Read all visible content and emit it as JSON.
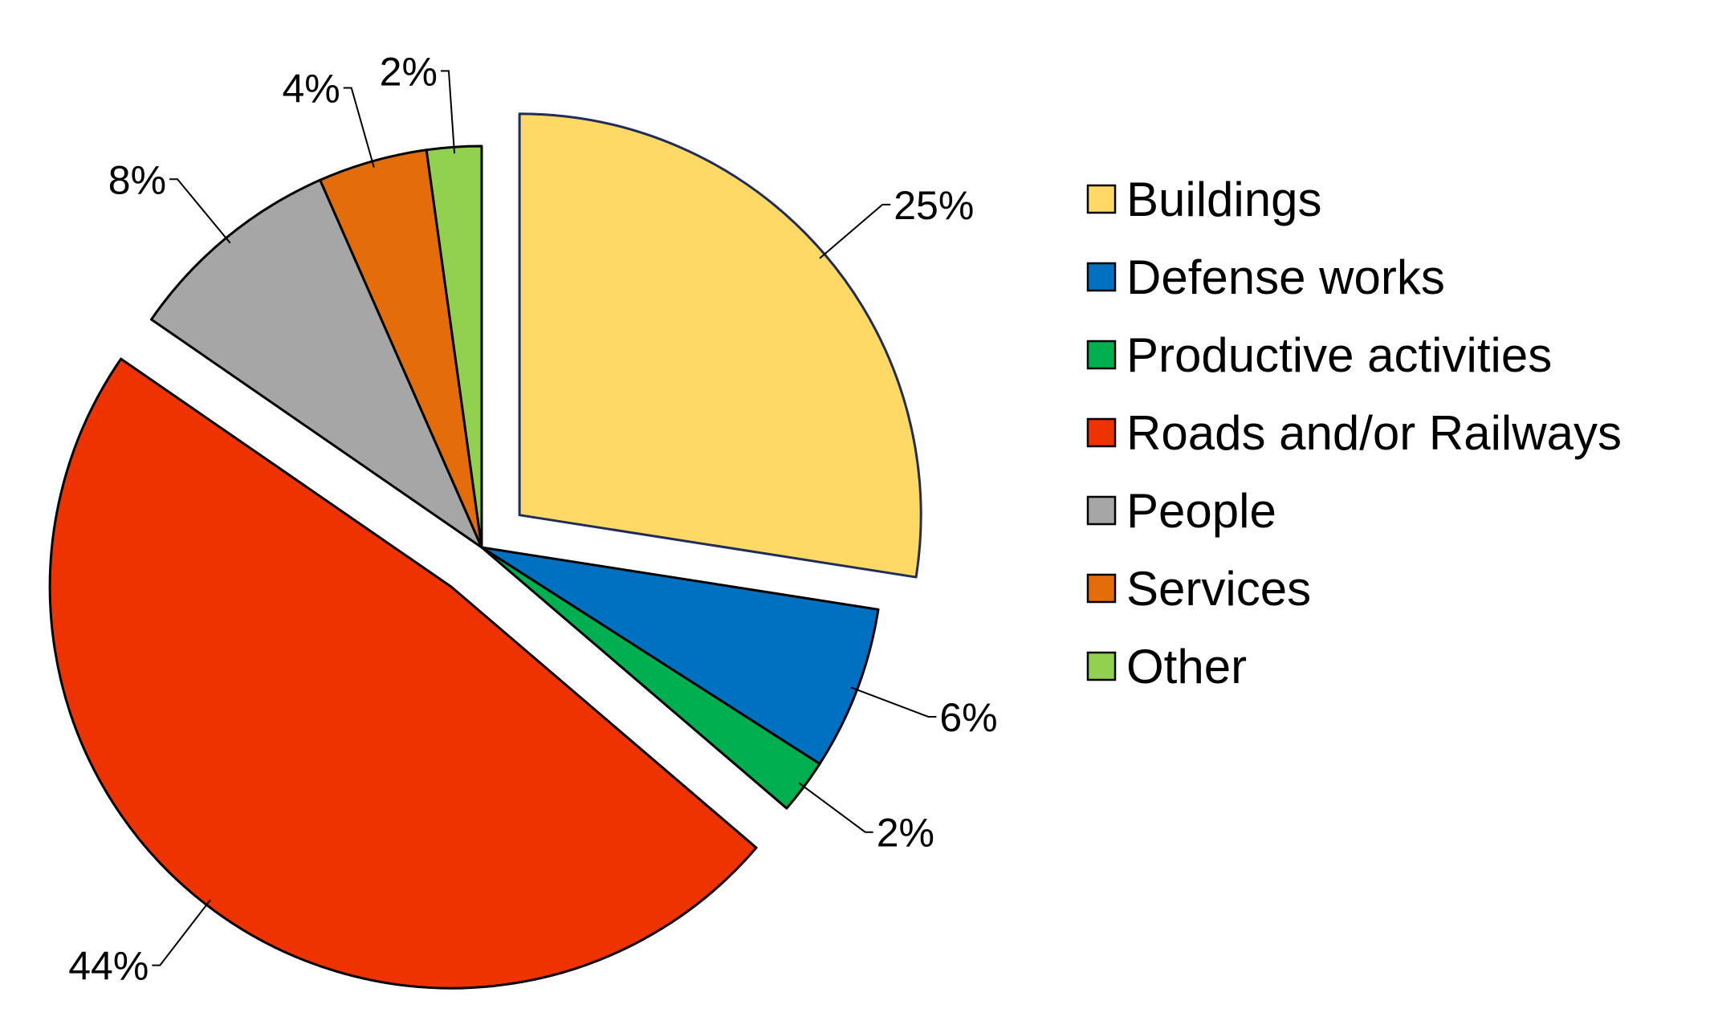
{
  "chart_data": {
    "type": "pie",
    "title": "",
    "unit": "%",
    "exploded_categories": [
      "Buildings",
      "Roads and/or Railways"
    ],
    "slices": [
      {
        "category": "Buildings",
        "value": 25,
        "label": "25%",
        "color": "#fed966"
      },
      {
        "category": "Defense works",
        "value": 6,
        "label": "6%",
        "color": "#0070c0"
      },
      {
        "category": "Productive activities",
        "value": 2,
        "label": "2%",
        "color": "#00b050"
      },
      {
        "category": "Roads and/or Railways",
        "value": 44,
        "label": "44%",
        "color": "#ee3300"
      },
      {
        "category": "People",
        "value": 8,
        "label": "8%",
        "color": "#a6a6a6"
      },
      {
        "category": "Services",
        "value": 4,
        "label": "4%",
        "color": "#e46c0a"
      },
      {
        "category": "Other",
        "value": 2,
        "label": "2%",
        "color": "#92d050"
      }
    ],
    "legend": {
      "placement": "right",
      "entries": [
        "Buildings",
        "Defense works",
        "Productive activities",
        "Roads and/or Railways",
        "People",
        "Services",
        "Other"
      ]
    }
  }
}
